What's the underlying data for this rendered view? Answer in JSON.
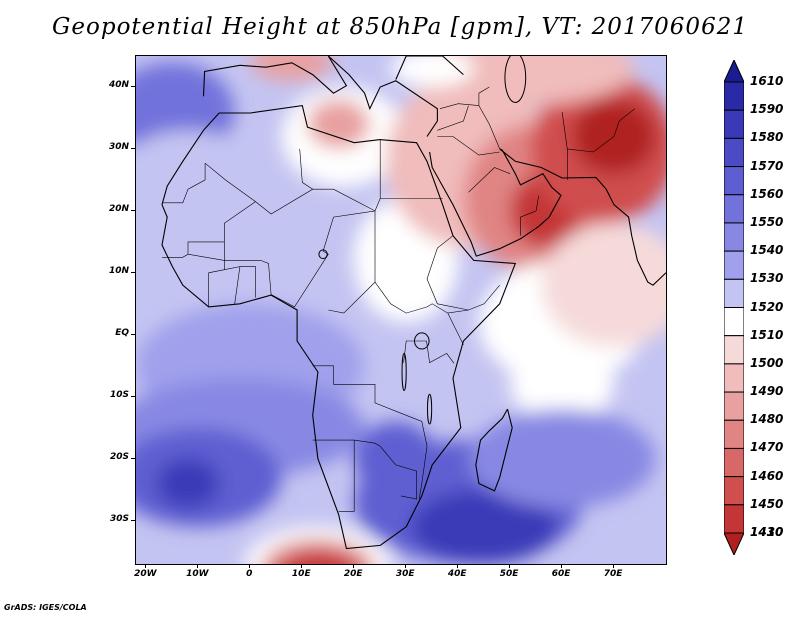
{
  "title": "Geopotential Height at 850hPa [gpm], VT: 2017060621",
  "credit": "GrADS: IGES/COLA",
  "map": {
    "lat_range": [
      -37,
      45
    ],
    "lon_range": [
      -22,
      80
    ],
    "lat_ticks": [
      {
        "value": 40,
        "label": "40N"
      },
      {
        "value": 30,
        "label": "30N"
      },
      {
        "value": 20,
        "label": "20N"
      },
      {
        "value": 10,
        "label": "10N"
      },
      {
        "value": 0,
        "label": "EQ"
      },
      {
        "value": -10,
        "label": "10S"
      },
      {
        "value": -20,
        "label": "20S"
      },
      {
        "value": -30,
        "label": "30S"
      }
    ],
    "lon_ticks": [
      {
        "value": -20,
        "label": "20W"
      },
      {
        "value": -10,
        "label": "10W"
      },
      {
        "value": 0,
        "label": "0"
      },
      {
        "value": 10,
        "label": "10E"
      },
      {
        "value": 20,
        "label": "20E"
      },
      {
        "value": 30,
        "label": "30E"
      },
      {
        "value": 40,
        "label": "40E"
      },
      {
        "value": 50,
        "label": "50E"
      },
      {
        "value": 60,
        "label": "60E"
      },
      {
        "value": 70,
        "label": "70E"
      }
    ]
  },
  "colorbar": {
    "levels": [
      {
        "label": "1610",
        "color": "#1c1c92"
      },
      {
        "label": "1590",
        "color": "#2a2aa6"
      },
      {
        "label": "1580",
        "color": "#3a3ab8"
      },
      {
        "label": "1570",
        "color": "#4b4bc6"
      },
      {
        "label": "1560",
        "color": "#5e5ed2"
      },
      {
        "label": "1550",
        "color": "#7272dc"
      },
      {
        "label": "1540",
        "color": "#8888e4"
      },
      {
        "label": "1530",
        "color": "#a0a0ec"
      },
      {
        "label": "1520",
        "color": "#c4c4f2"
      },
      {
        "label": "1510",
        "color": "#ffffff"
      },
      {
        "label": "1500",
        "color": "#f6dada"
      },
      {
        "label": "1490",
        "color": "#f0bcbc"
      },
      {
        "label": "1480",
        "color": "#e8a0a0"
      },
      {
        "label": "1470",
        "color": "#e08484"
      },
      {
        "label": "1460",
        "color": "#d86868"
      },
      {
        "label": "1450",
        "color": "#d04e4e"
      },
      {
        "label": "1430",
        "color": "#c43636"
      },
      {
        "label": "1410",
        "color": "#b02020"
      }
    ],
    "top_arrow_color": "#1c1c92",
    "bottom_arrow_color": "#b02020"
  },
  "field_blobs": [
    {
      "lon": -18,
      "lat": 38,
      "rx": 7,
      "ry": 5,
      "color": "#3a3ab8"
    },
    {
      "lon": -15,
      "lat": 36,
      "rx": 12,
      "ry": 8,
      "color": "#7272dc"
    },
    {
      "lon": -12,
      "lat": 25,
      "rx": 14,
      "ry": 8,
      "color": "#c4c4f2"
    },
    {
      "lon": 5,
      "lat": 18,
      "rx": 20,
      "ry": 8,
      "color": "#c4c4f2"
    },
    {
      "lon": 18,
      "lat": 32,
      "rx": 12,
      "ry": 8,
      "color": "#ffffff"
    },
    {
      "lon": 17,
      "lat": 34,
      "rx": 6,
      "ry": 4,
      "color": "#e8a0a0"
    },
    {
      "lon": 30,
      "lat": 12,
      "rx": 10,
      "ry": 10,
      "color": "#ffffff"
    },
    {
      "lon": 42,
      "lat": 28,
      "rx": 16,
      "ry": 14,
      "color": "#f0bcbc"
    },
    {
      "lon": 55,
      "lat": 22,
      "rx": 14,
      "ry": 12,
      "color": "#e08484"
    },
    {
      "lon": 57,
      "lat": 20,
      "rx": 7,
      "ry": 6,
      "color": "#c43636"
    },
    {
      "lon": 68,
      "lat": 30,
      "rx": 14,
      "ry": 12,
      "color": "#d04e4e"
    },
    {
      "lon": 70,
      "lat": 32,
      "rx": 8,
      "ry": 6,
      "color": "#b02020"
    },
    {
      "lon": 52,
      "lat": 43,
      "rx": 22,
      "ry": 6,
      "color": "#f0bcbc"
    },
    {
      "lon": 35,
      "lat": 43,
      "rx": 8,
      "ry": 3,
      "color": "#ffffff"
    },
    {
      "lon": 8,
      "lat": 44,
      "rx": 8,
      "ry": 3,
      "color": "#e8a0a0"
    },
    {
      "lon": 60,
      "lat": 2,
      "rx": 16,
      "ry": 10,
      "color": "#ffffff"
    },
    {
      "lon": 70,
      "lat": 8,
      "rx": 14,
      "ry": 10,
      "color": "#f6dada"
    },
    {
      "lon": 60,
      "lat": -8,
      "rx": 10,
      "ry": 6,
      "color": "#ffffff"
    },
    {
      "lon": 0,
      "lat": -5,
      "rx": 22,
      "ry": 10,
      "color": "#a0a0ec"
    },
    {
      "lon": -2,
      "lat": -15,
      "rx": 24,
      "ry": 8,
      "color": "#8888e4"
    },
    {
      "lon": -10,
      "lat": -23,
      "rx": 16,
      "ry": 8,
      "color": "#5e5ed2"
    },
    {
      "lon": -12,
      "lat": -24,
      "rx": 6,
      "ry": 4,
      "color": "#3a3ab8"
    },
    {
      "lon": 42,
      "lat": -27,
      "rx": 22,
      "ry": 10,
      "color": "#5e5ed2"
    },
    {
      "lon": 45,
      "lat": -31,
      "rx": 14,
      "ry": 6,
      "color": "#3a3ab8"
    },
    {
      "lon": 28,
      "lat": -20,
      "rx": 8,
      "ry": 6,
      "color": "#5e5ed2"
    },
    {
      "lon": 13,
      "lat": -37,
      "rx": 14,
      "ry": 6,
      "color": "#ffffff"
    },
    {
      "lon": 13,
      "lat": -38,
      "rx": 11,
      "ry": 5,
      "color": "#e08484"
    },
    {
      "lon": 13,
      "lat": -39,
      "rx": 8,
      "ry": 4,
      "color": "#c43636"
    },
    {
      "lon": 60,
      "lat": -20,
      "rx": 18,
      "ry": 8,
      "color": "#8888e4"
    }
  ]
}
